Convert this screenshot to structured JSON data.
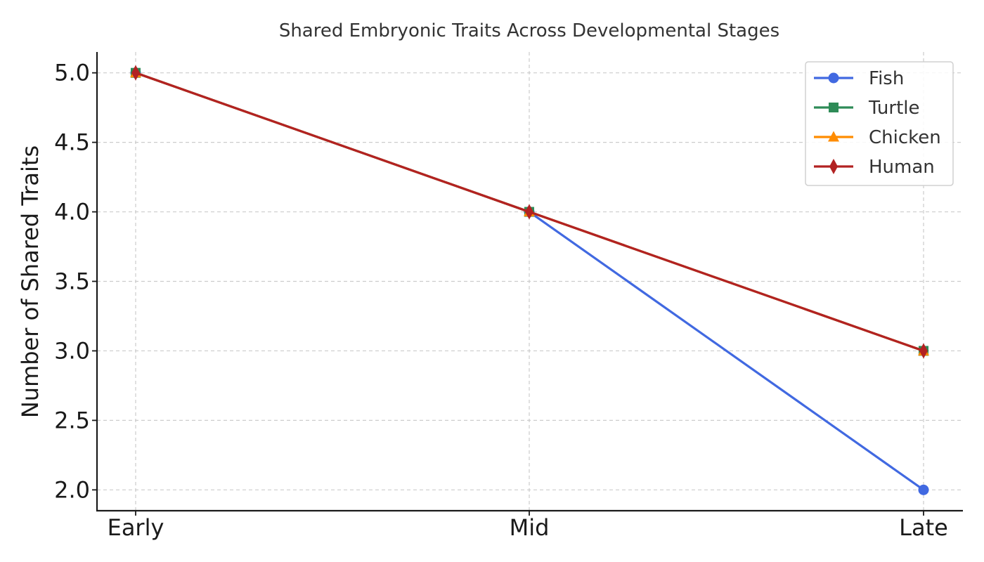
{
  "chart_data": {
    "type": "line",
    "title": "Shared Embryonic Traits Across Developmental Stages",
    "xlabel": "",
    "ylabel": "Number of Shared Traits",
    "categories": [
      "Early",
      "Mid",
      "Late"
    ],
    "yticks": [
      "2.0",
      "2.5",
      "3.0",
      "3.5",
      "4.0",
      "4.5",
      "5.0"
    ],
    "ylim": [
      1.85,
      5.15
    ],
    "grid": true,
    "legend_position": "top-right",
    "series": [
      {
        "name": "Fish",
        "values": [
          5,
          4,
          2
        ],
        "color": "#4169e1",
        "marker": "circle"
      },
      {
        "name": "Turtle",
        "values": [
          5,
          4,
          3
        ],
        "color": "#2e8b57",
        "marker": "square"
      },
      {
        "name": "Chicken",
        "values": [
          5,
          4,
          3
        ],
        "color": "#ff8c00",
        "marker": "triangle"
      },
      {
        "name": "Human",
        "values": [
          5,
          4,
          3
        ],
        "color": "#b22222",
        "marker": "diamond"
      }
    ]
  }
}
